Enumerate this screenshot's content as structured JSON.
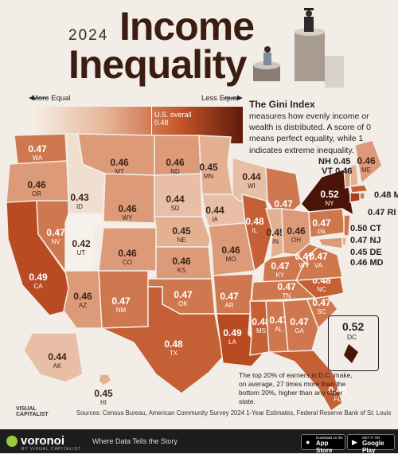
{
  "header": {
    "year": "2024",
    "title_line1": "Income",
    "title_line2": "Inequality"
  },
  "scale": {
    "more_equal": "More Equal",
    "less_equal": "Less Equal",
    "us_label": "U.S. overall",
    "us_value": "0.48"
  },
  "gini": {
    "title": "The Gini Index",
    "body": "measures how evenly income or wealth is distributed. A score of 0 means perfect equality, while 1 indicates extreme inequality."
  },
  "colors": {
    "0.42": "#f6f1ea",
    "0.43": "#f0dfd1",
    "0.44": "#e8bfa6",
    "0.45": "#e4b092",
    "0.46": "#dc9a78",
    "0.47": "#cf774f",
    "0.48": "#c55f35",
    "0.49": "#b94b23",
    "0.50": "#a83e1c",
    "0.52": "#4a1408"
  },
  "states": [
    {
      "ab": "WA",
      "v": "0.47"
    },
    {
      "ab": "OR",
      "v": "0.46"
    },
    {
      "ab": "CA",
      "v": "0.49"
    },
    {
      "ab": "NV",
      "v": "0.47"
    },
    {
      "ab": "ID",
      "v": "0.43"
    },
    {
      "ab": "MT",
      "v": "0.46"
    },
    {
      "ab": "WY",
      "v": "0.46"
    },
    {
      "ab": "UT",
      "v": "0.42"
    },
    {
      "ab": "AZ",
      "v": "0.46"
    },
    {
      "ab": "CO",
      "v": "0.46"
    },
    {
      "ab": "NM",
      "v": "0.47"
    },
    {
      "ab": "ND",
      "v": "0.46"
    },
    {
      "ab": "SD",
      "v": "0.44"
    },
    {
      "ab": "NE",
      "v": "0.45"
    },
    {
      "ab": "KS",
      "v": "0.46"
    },
    {
      "ab": "OK",
      "v": "0.47"
    },
    {
      "ab": "TX",
      "v": "0.48"
    },
    {
      "ab": "MN",
      "v": "0.45"
    },
    {
      "ab": "IA",
      "v": "0.44"
    },
    {
      "ab": "MO",
      "v": "0.46"
    },
    {
      "ab": "AR",
      "v": "0.47"
    },
    {
      "ab": "LA",
      "v": "0.49"
    },
    {
      "ab": "WI",
      "v": "0.44"
    },
    {
      "ab": "IL",
      "v": "0.48"
    },
    {
      "ab": "MI",
      "v": "0.47"
    },
    {
      "ab": "IN",
      "v": "0.45"
    },
    {
      "ab": "OH",
      "v": "0.46"
    },
    {
      "ab": "KY",
      "v": "0.47"
    },
    {
      "ab": "TN",
      "v": "0.47"
    },
    {
      "ab": "MS",
      "v": "0.48"
    },
    {
      "ab": "AL",
      "v": "0.47"
    },
    {
      "ab": "GA",
      "v": "0.47"
    },
    {
      "ab": "FL",
      "v": "0.48"
    },
    {
      "ab": "SC",
      "v": "0.47"
    },
    {
      "ab": "NC",
      "v": "0.48"
    },
    {
      "ab": "VA",
      "v": "0.47"
    },
    {
      "ab": "WV",
      "v": "0.47"
    },
    {
      "ab": "PA",
      "v": "0.47"
    },
    {
      "ab": "NY",
      "v": "0.52"
    },
    {
      "ab": "ME",
      "v": "0.46"
    },
    {
      "ab": "NH",
      "v": "0.45"
    },
    {
      "ab": "VT",
      "v": "0.46"
    },
    {
      "ab": "MA",
      "v": "0.48"
    },
    {
      "ab": "RI",
      "v": "0.47"
    },
    {
      "ab": "CT",
      "v": "0.50"
    },
    {
      "ab": "NJ",
      "v": "0.47"
    },
    {
      "ab": "DE",
      "v": "0.45"
    },
    {
      "ab": "MD",
      "v": "0.46"
    },
    {
      "ab": "AK",
      "v": "0.44"
    },
    {
      "ab": "HI",
      "v": "0.45"
    }
  ],
  "dc": {
    "value": "0.52",
    "ab": "DC",
    "note": "The top 20% of earners in D.C. make, on average, 27 times more than the bottom 20%, higher than any other state."
  },
  "sources": "Sources: Census Bureau, American Community Survey 2024 1-Year Estimates, Federal Reserve Bank of St. Louis",
  "footer": {
    "logo_line1": "VISUAL",
    "logo_line2": "CAPITALIST",
    "brand": "voronoi",
    "brand_sub": "BY VISUAL CAPITALIST",
    "tagline": "Where Data Tells the Story",
    "app_store_small": "Download on the",
    "app_store": "App Store",
    "google_small": "GET IT ON",
    "google": "Google Play"
  }
}
